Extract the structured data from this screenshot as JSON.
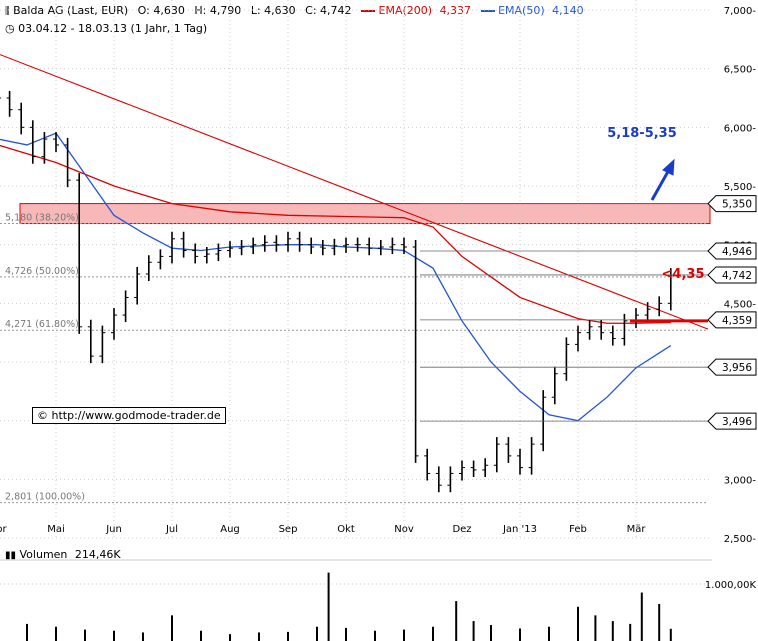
{
  "header": {
    "title": "Balda AG (Last, EUR)",
    "open": "O: 4,630",
    "high": "H: 4,790",
    "low": "L: 4,630",
    "close": "C: 4,742",
    "ema200_label": "EMA(200)",
    "ema200_value": "4,337",
    "ema50_label": "EMA(50)",
    "ema50_value": "4,140",
    "range": "03.04.12 - 18.03.13 (1 Jahr, 1 Tag)"
  },
  "copyright": "© http://www.godmode-trader.de",
  "volume": {
    "label": "Volumen",
    "value": "214,46K",
    "tick": "1.000,00K"
  },
  "colors": {
    "ema200": "#e00000",
    "ema50": "#2255dd",
    "zone": "#f8b8b8",
    "price": "#000000"
  },
  "chart_data": {
    "type": "line",
    "title": "Balda AG (Last, EUR)",
    "ylim": [
      2.5,
      7.0
    ],
    "y_ticks": [
      "2,500-",
      "3,000-",
      "3,500-",
      "4,000-",
      "4,500-",
      "5,000-",
      "5,500-",
      "6,000-",
      "6,500-",
      "7,000-"
    ],
    "y_tick_values": [
      2.5,
      3.0,
      3.5,
      4.0,
      4.5,
      5.0,
      5.5,
      6.0,
      6.5,
      7.0
    ],
    "x_months": [
      "Apr",
      "Mai",
      "Jun",
      "Jul",
      "Aug",
      "Sep",
      "Okt",
      "Nov",
      "Dez",
      "Jan '13",
      "Feb",
      "Mär"
    ],
    "x_month_index": [
      0,
      1,
      2,
      3,
      4,
      5,
      6,
      7,
      8,
      9,
      10,
      11
    ],
    "price_labels": [
      "5,350",
      "4,946",
      "4,742",
      "4,359",
      "3,956",
      "3,496"
    ],
    "price_label_values": [
      5.35,
      4.946,
      4.742,
      4.359,
      3.956,
      3.496
    ],
    "fib_levels": [
      {
        "label": "5,180 (38.20%)",
        "value": 5.18
      },
      {
        "label": "4,726 (50.00%)",
        "value": 4.726
      },
      {
        "label": "4,271 (61.80%)",
        "value": 4.271
      },
      {
        "label": "2,801 (100.00%)",
        "value": 2.801
      }
    ],
    "resistance_zone": [
      5.18,
      5.35
    ],
    "annotations": {
      "target": "5,18-5,35",
      "stop": "<4,35"
    },
    "series": [
      {
        "name": "Balda AG",
        "x": [
          0,
          0.2,
          0.4,
          0.6,
          0.8,
          1.0,
          1.2,
          1.4,
          1.6,
          1.8,
          2.0,
          2.2,
          2.4,
          2.6,
          2.8,
          3.0,
          3.2,
          3.4,
          3.6,
          3.8,
          4.0,
          4.2,
          4.4,
          4.6,
          4.8,
          5.0,
          5.2,
          5.4,
          5.6,
          5.8,
          6.0,
          6.2,
          6.4,
          6.6,
          6.8,
          7.0,
          7.2,
          7.4,
          7.6,
          7.8,
          8.0,
          8.2,
          8.4,
          8.6,
          8.8,
          9.0,
          9.2,
          9.4,
          9.6,
          9.8,
          10.0,
          10.2,
          10.4,
          10.6,
          10.8,
          11.0,
          11.2,
          11.4,
          11.6
        ],
        "y": [
          6.25,
          6.15,
          6.0,
          5.75,
          5.9,
          5.85,
          5.55,
          4.3,
          4.05,
          4.25,
          4.4,
          4.55,
          4.75,
          4.85,
          4.9,
          5.05,
          4.95,
          4.9,
          4.92,
          4.95,
          4.97,
          4.98,
          5.0,
          5.02,
          5.0,
          5.05,
          5.0,
          4.98,
          4.97,
          4.99,
          5.0,
          5.0,
          4.97,
          4.98,
          5.0,
          4.98,
          3.2,
          3.05,
          2.95,
          3.05,
          3.1,
          3.08,
          3.12,
          3.3,
          3.2,
          3.1,
          3.3,
          3.7,
          3.9,
          4.15,
          4.25,
          4.3,
          4.25,
          4.2,
          4.35,
          4.4,
          4.45,
          4.5,
          4.74
        ]
      },
      {
        "name": "EMA(200)",
        "x": [
          0,
          1,
          2,
          3,
          4,
          5,
          6,
          7,
          7.5,
          8,
          9,
          10,
          10.5,
          11,
          11.6
        ],
        "y": [
          5.85,
          5.7,
          5.5,
          5.35,
          5.28,
          5.25,
          5.24,
          5.23,
          5.15,
          4.9,
          4.55,
          4.37,
          4.33,
          4.33,
          4.337
        ]
      },
      {
        "name": "EMA(50)",
        "x": [
          0,
          0.5,
          1,
          1.5,
          2,
          2.5,
          3,
          3.5,
          4,
          4.5,
          5,
          5.5,
          6,
          6.5,
          7,
          7.5,
          8,
          8.5,
          9,
          9.5,
          10,
          10.5,
          11,
          11.6
        ],
        "y": [
          5.9,
          5.85,
          5.95,
          5.6,
          5.25,
          5.1,
          4.97,
          4.95,
          4.98,
          4.99,
          5.0,
          5.0,
          4.98,
          4.97,
          4.95,
          4.8,
          4.35,
          4.0,
          3.75,
          3.55,
          3.5,
          3.7,
          3.95,
          4.14
        ]
      }
    ],
    "volume_x": [
      0,
      0.5,
      1,
      1.5,
      2,
      2.5,
      3,
      3.5,
      4,
      4.5,
      5,
      5.5,
      5.7,
      6,
      6.5,
      7,
      7.5,
      7.9,
      8.2,
      8.5,
      9,
      9.5,
      10,
      10.3,
      10.6,
      10.9,
      11.1,
      11.4,
      11.6
    ],
    "volume_k": [
      150,
      300,
      250,
      200,
      180,
      150,
      450,
      180,
      120,
      150,
      160,
      250,
      1200,
      230,
      180,
      200,
      250,
      700,
      350,
      280,
      220,
      250,
      600,
      450,
      350,
      300,
      850,
      650,
      214.46
    ]
  }
}
